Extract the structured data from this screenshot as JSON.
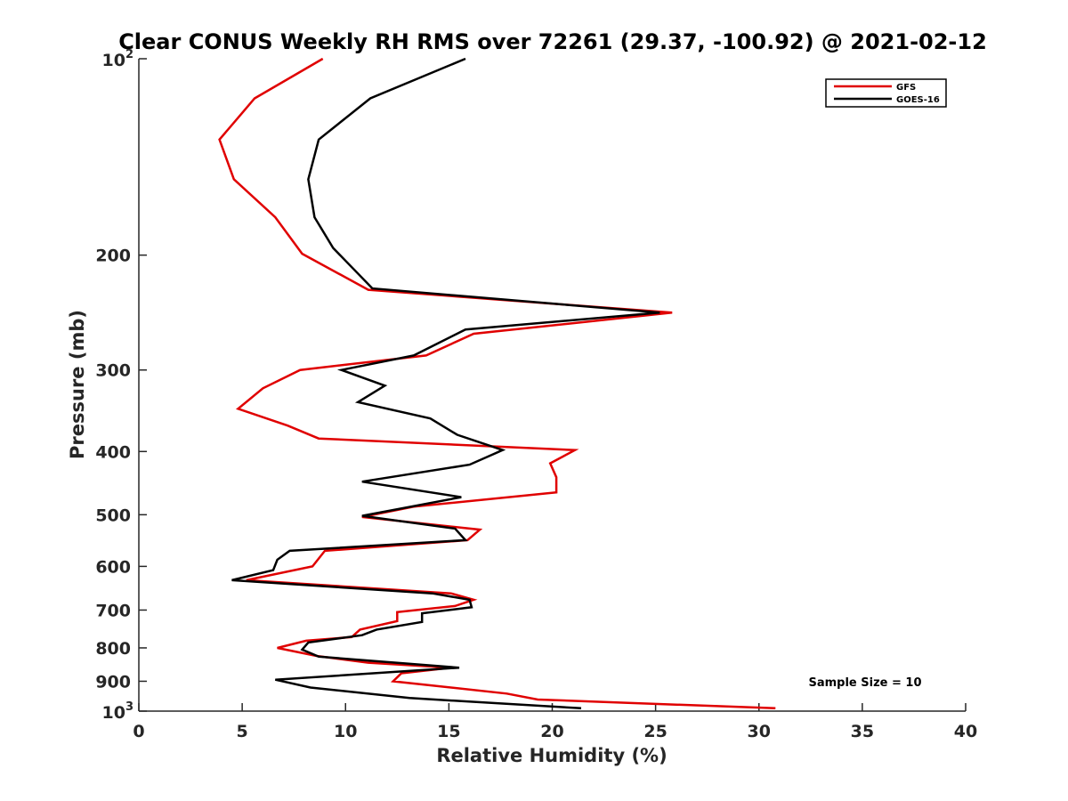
{
  "chart_data": {
    "type": "line",
    "title": "Clear CONUS Weekly RH RMS over 72261 (29.37, -100.92) @ 2021-02-12",
    "xlabel": "Relative Humidity (%)",
    "ylabel": "Pressure (mb)",
    "xlim": [
      0,
      40
    ],
    "ylim": [
      100,
      1000
    ],
    "yscale": "log",
    "yreversed": true,
    "grid": false,
    "legend_position": "top-right",
    "x_ticks": [
      "0",
      "5",
      "10",
      "15",
      "20",
      "25",
      "30",
      "35",
      "40"
    ],
    "y_ticks": [
      {
        "value": 200,
        "label": "200"
      },
      {
        "value": 300,
        "label": "300"
      },
      {
        "value": 400,
        "label": "400"
      },
      {
        "value": 500,
        "label": "500"
      },
      {
        "value": 600,
        "label": "600"
      },
      {
        "value": 700,
        "label": "700"
      },
      {
        "value": 800,
        "label": "800"
      },
      {
        "value": 900,
        "label": "900"
      }
    ],
    "y_power_ticks": [
      {
        "value": 100,
        "base": "10",
        "exp": "2"
      },
      {
        "value": 1000,
        "base": "10",
        "exp": "3"
      }
    ],
    "annotation": "Sample Size = 10",
    "series": [
      {
        "name": "GFS",
        "color": "#e00000",
        "points": [
          [
            8.9,
            100
          ],
          [
            5.6,
            115
          ],
          [
            3.9,
            133
          ],
          [
            4.6,
            153
          ],
          [
            6.6,
            175
          ],
          [
            7.9,
            199
          ],
          [
            11.1,
            226
          ],
          [
            25.8,
            245
          ],
          [
            16.2,
            264
          ],
          [
            13.9,
            285
          ],
          [
            7.8,
            300
          ],
          [
            6.0,
            320
          ],
          [
            4.8,
            344
          ],
          [
            7.2,
            365
          ],
          [
            8.7,
            382
          ],
          [
            21.1,
            398
          ],
          [
            19.9,
            417
          ],
          [
            20.2,
            438
          ],
          [
            20.2,
            462
          ],
          [
            13.3,
            486
          ],
          [
            10.8,
            504
          ],
          [
            16.5,
            527
          ],
          [
            15.9,
            547
          ],
          [
            9.0,
            568
          ],
          [
            8.4,
            600
          ],
          [
            5.2,
            630
          ],
          [
            15.1,
            660
          ],
          [
            16.2,
            675
          ],
          [
            15.3,
            690
          ],
          [
            12.5,
            705
          ],
          [
            12.5,
            728
          ],
          [
            10.7,
            750
          ],
          [
            10.3,
            770
          ],
          [
            8.1,
            780
          ],
          [
            6.7,
            800
          ],
          [
            8.6,
            823
          ],
          [
            11.1,
            843
          ],
          [
            15.1,
            858
          ],
          [
            12.7,
            875
          ],
          [
            12.3,
            900
          ],
          [
            17.8,
            940
          ],
          [
            19.3,
            960
          ],
          [
            30.8,
            990
          ]
        ]
      },
      {
        "name": "GOES-16",
        "color": "#000000",
        "points": [
          [
            15.8,
            100
          ],
          [
            11.2,
            115
          ],
          [
            8.7,
            133
          ],
          [
            8.2,
            153
          ],
          [
            8.5,
            175
          ],
          [
            9.4,
            195
          ],
          [
            11.3,
            225
          ],
          [
            25.2,
            245
          ],
          [
            15.8,
            260
          ],
          [
            13.3,
            285
          ],
          [
            9.8,
            300
          ],
          [
            11.9,
            317
          ],
          [
            10.6,
            336
          ],
          [
            14.1,
            356
          ],
          [
            15.4,
            377
          ],
          [
            17.6,
            398
          ],
          [
            16.0,
            419
          ],
          [
            10.8,
            445
          ],
          [
            15.6,
            470
          ],
          [
            10.8,
            502
          ],
          [
            15.3,
            525
          ],
          [
            15.8,
            547
          ],
          [
            7.3,
            568
          ],
          [
            6.7,
            586
          ],
          [
            6.5,
            608
          ],
          [
            4.5,
            630
          ],
          [
            14.2,
            660
          ],
          [
            16.0,
            675
          ],
          [
            16.1,
            693
          ],
          [
            13.7,
            708
          ],
          [
            13.7,
            730
          ],
          [
            11.5,
            750
          ],
          [
            10.8,
            765
          ],
          [
            8.2,
            785
          ],
          [
            7.9,
            805
          ],
          [
            8.7,
            825
          ],
          [
            15.5,
            858
          ],
          [
            6.6,
            895
          ],
          [
            8.3,
            920
          ],
          [
            13.1,
            955
          ],
          [
            21.4,
            990
          ]
        ]
      }
    ]
  }
}
